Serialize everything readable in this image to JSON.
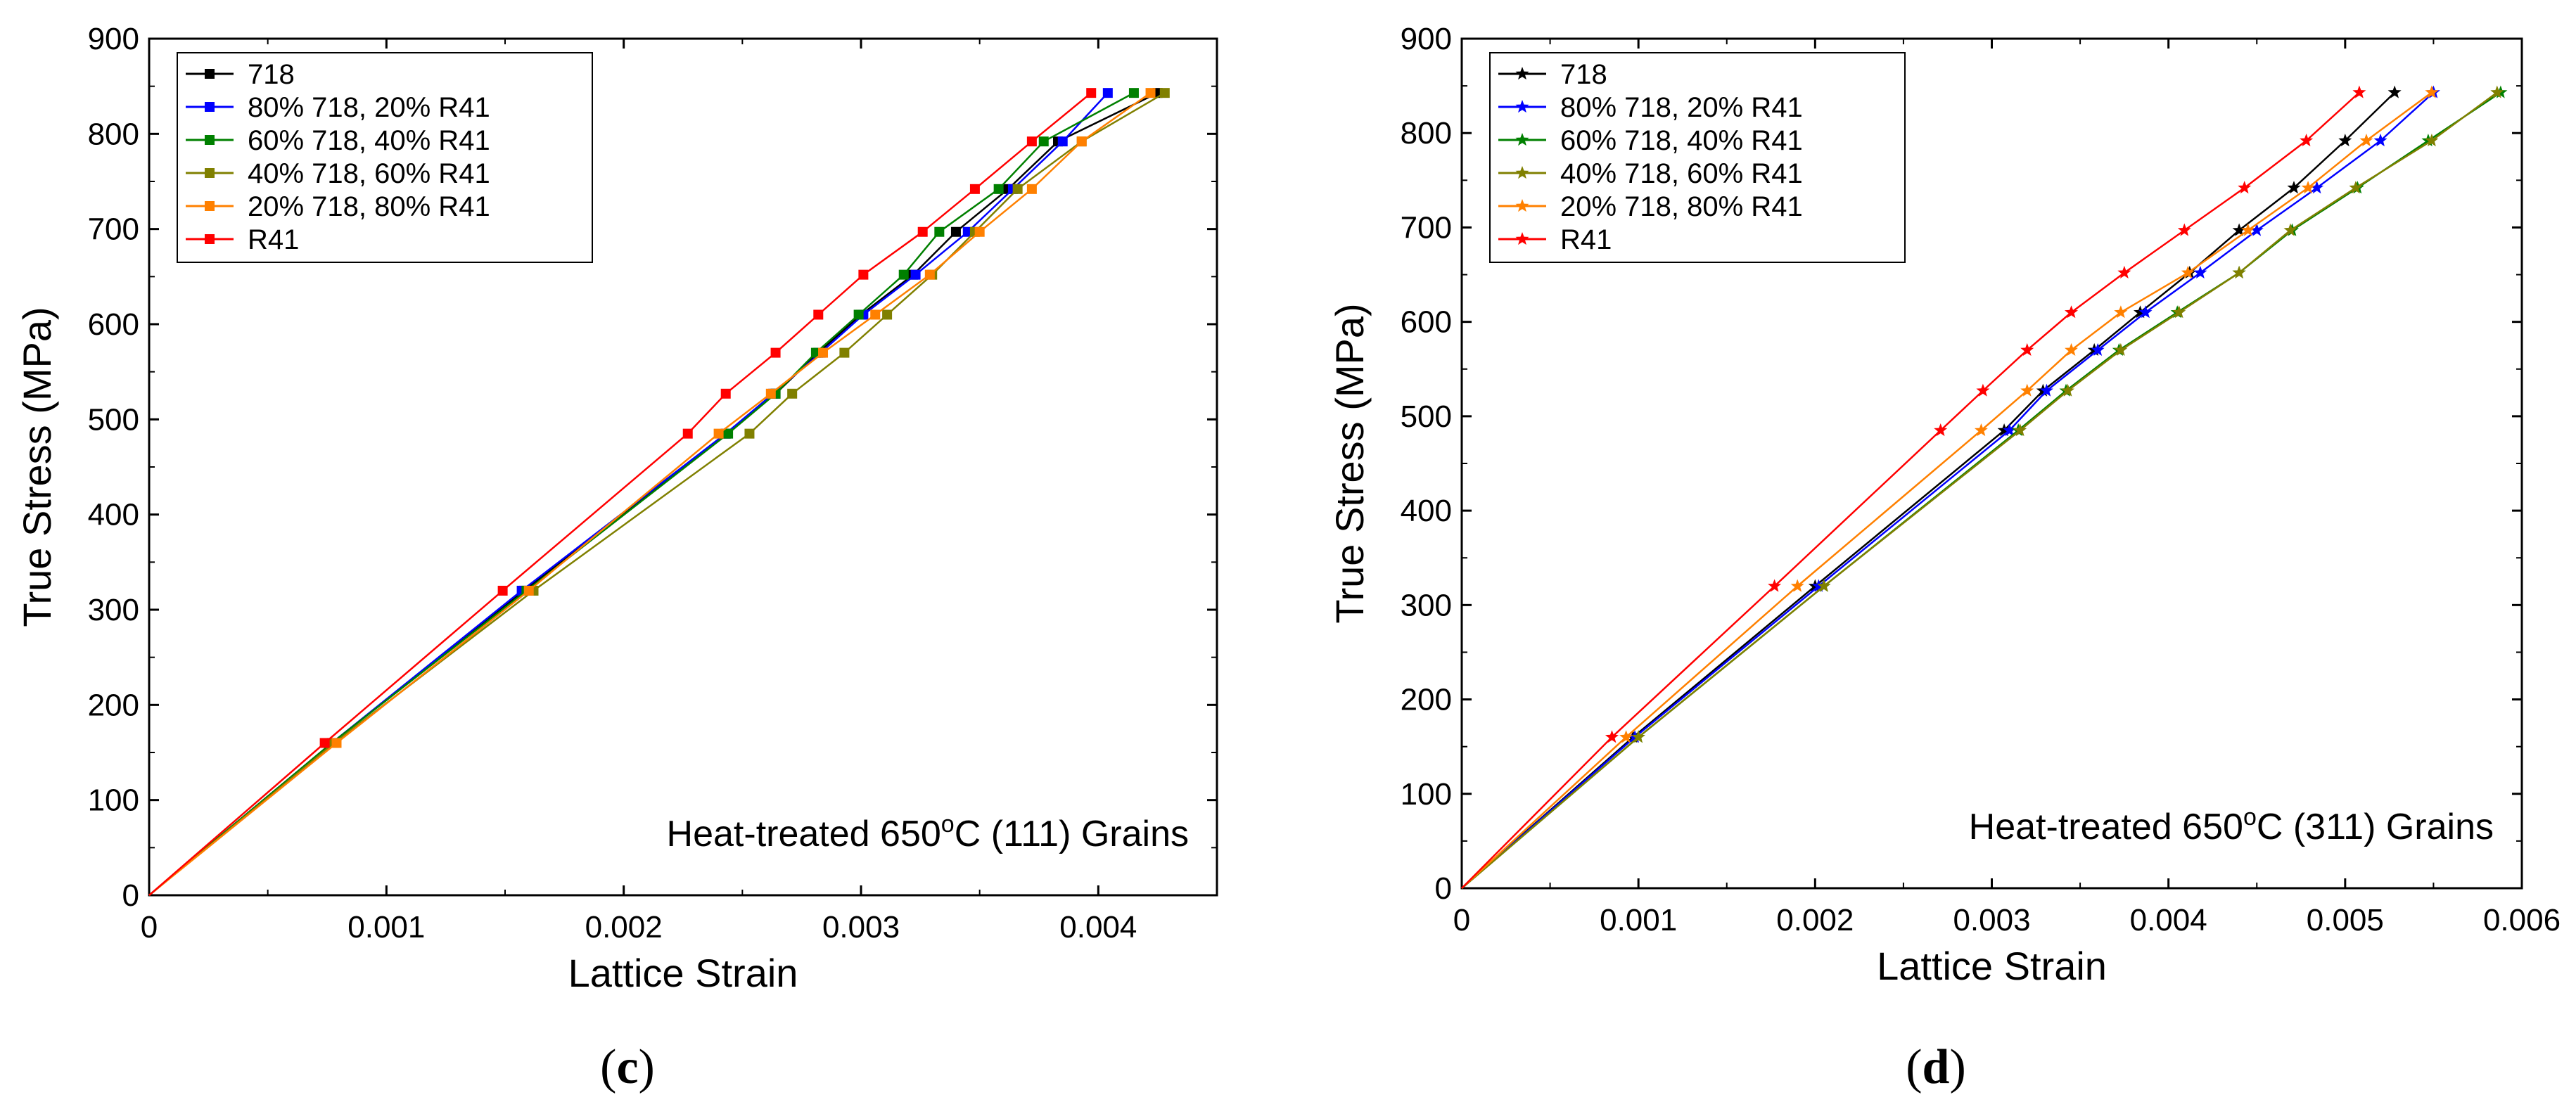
{
  "figure_labels": {
    "left_prefix": "(",
    "left_letter": "c",
    "left_suffix": ")",
    "right_prefix": "(",
    "right_letter": "d",
    "right_suffix": ")"
  },
  "chart_data": [
    {
      "type": "line",
      "marker": "square",
      "xlabel": "Lattice Strain",
      "ylabel": "True Stress (MPa)",
      "xlim": [
        0,
        0.0045
      ],
      "ylim": [
        0,
        900
      ],
      "xticks": [
        0,
        0.001,
        0.002,
        0.003,
        0.004
      ],
      "xtick_labels": [
        "0",
        "0.001",
        "0.002",
        "0.003",
        "0.004"
      ],
      "yticks": [
        0,
        100,
        200,
        300,
        400,
        500,
        600,
        700,
        800,
        900
      ],
      "ytick_labels": [
        "0",
        "100",
        "200",
        "300",
        "400",
        "500",
        "600",
        "700",
        "800",
        "900"
      ],
      "annotation": {
        "prefix": "Heat-treated 650",
        "sup": "o",
        "suffix": "C (111) Grains"
      },
      "y_values": [
        0,
        160,
        320,
        485,
        527,
        570,
        610,
        652,
        697,
        742,
        792,
        843
      ],
      "series": [
        {
          "name": "718",
          "color": "#000000",
          "x": [
            0,
            0.00077,
            0.00158,
            0.00243,
            0.00264,
            0.00282,
            0.003,
            0.00322,
            0.0034,
            0.00362,
            0.00383,
            0.00425
          ]
        },
        {
          "name": "80% 718, 20% R41",
          "color": "#0000ff",
          "x": [
            0,
            0.00077,
            0.00157,
            0.00243,
            0.00263,
            0.00283,
            0.00301,
            0.00323,
            0.00345,
            0.00364,
            0.00385,
            0.00404
          ]
        },
        {
          "name": "60% 718, 40% R41",
          "color": "#008000",
          "x": [
            0,
            0.00077,
            0.00159,
            0.00244,
            0.00264,
            0.00281,
            0.00299,
            0.00318,
            0.00333,
            0.00358,
            0.00377,
            0.00415
          ]
        },
        {
          "name": "40% 718, 60% R41",
          "color": "#808000",
          "x": [
            0,
            0.00078,
            0.00162,
            0.00253,
            0.00271,
            0.00293,
            0.00311,
            0.0033,
            0.00348,
            0.00366,
            0.00393,
            0.00428
          ]
        },
        {
          "name": "20% 718, 80% R41",
          "color": "#ff8000",
          "x": [
            0,
            0.00079,
            0.0016,
            0.0024,
            0.00262,
            0.00284,
            0.00306,
            0.00329,
            0.0035,
            0.00372,
            0.00393,
            0.00422
          ]
        },
        {
          "name": "R41",
          "color": "#ff0000",
          "x": [
            0,
            0.00074,
            0.00149,
            0.00227,
            0.00243,
            0.00264,
            0.00282,
            0.00301,
            0.00326,
            0.00348,
            0.00372,
            0.00397
          ]
        }
      ]
    },
    {
      "type": "line",
      "marker": "star",
      "xlabel": "Lattice Strain",
      "ylabel": "True Stress (MPa)",
      "xlim": [
        0,
        0.006
      ],
      "ylim": [
        0,
        900
      ],
      "xticks": [
        0,
        0.001,
        0.002,
        0.003,
        0.004,
        0.005,
        0.006
      ],
      "xtick_labels": [
        "0",
        "0.001",
        "0.002",
        "0.003",
        "0.004",
        "0.005",
        "0.006"
      ],
      "yticks": [
        0,
        100,
        200,
        300,
        400,
        500,
        600,
        700,
        800,
        900
      ],
      "ytick_labels": [
        "0",
        "100",
        "200",
        "300",
        "400",
        "500",
        "600",
        "700",
        "800",
        "900"
      ],
      "annotation": {
        "prefix": "Heat-treated 650",
        "sup": "o",
        "suffix": "C (311) Grains"
      },
      "y_values": [
        0,
        160,
        320,
        485,
        527,
        570,
        610,
        652,
        697,
        742,
        792,
        843
      ],
      "series": [
        {
          "name": "718",
          "color": "#000000",
          "x": [
            0,
            0.00097,
            0.002,
            0.00307,
            0.00329,
            0.00358,
            0.00384,
            0.00412,
            0.0044,
            0.00471,
            0.005,
            0.00528
          ]
        },
        {
          "name": "80% 718, 20% R41",
          "color": "#0000ff",
          "x": [
            0,
            0.00098,
            0.00202,
            0.0031,
            0.00331,
            0.0036,
            0.00387,
            0.00418,
            0.0045,
            0.00484,
            0.0052,
            0.0055
          ]
        },
        {
          "name": "60% 718, 40% R41",
          "color": "#008000",
          "x": [
            0,
            0.001,
            0.00205,
            0.00315,
            0.00342,
            0.00372,
            0.00405,
            0.0044,
            0.0047,
            0.00507,
            0.00547,
            0.00588
          ]
        },
        {
          "name": "40% 718, 60% R41",
          "color": "#808000",
          "x": [
            0,
            0.001,
            0.00205,
            0.00316,
            0.00343,
            0.00373,
            0.00406,
            0.0044,
            0.00469,
            0.00506,
            0.00549,
            0.00586
          ]
        },
        {
          "name": "20% 718, 80% R41",
          "color": "#ff8000",
          "x": [
            0,
            0.00093,
            0.0019,
            0.00294,
            0.0032,
            0.00345,
            0.00373,
            0.00411,
            0.00445,
            0.00479,
            0.00512,
            0.00549
          ]
        },
        {
          "name": "R41",
          "color": "#ff0000",
          "x": [
            0,
            0.00085,
            0.00177,
            0.00271,
            0.00295,
            0.0032,
            0.00345,
            0.00375,
            0.00409,
            0.00443,
            0.00478,
            0.00508
          ]
        }
      ]
    }
  ]
}
